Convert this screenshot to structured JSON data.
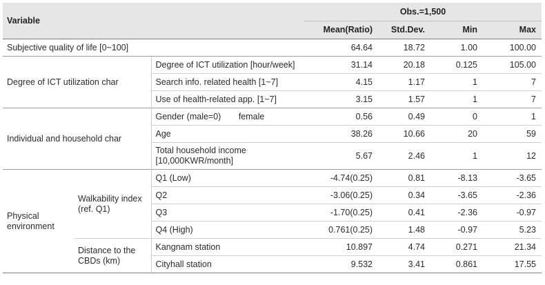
{
  "header": {
    "variable": "Variable",
    "obs": "Obs.=1,500",
    "mean": "Mean(Ratio)",
    "sd": "Std.Dev.",
    "min": "Min",
    "max": "Max"
  },
  "rows": {
    "sqol": {
      "label": "Subjective quality of life [0~100]",
      "mean": "64.64",
      "sd": "18.72",
      "min": "1.00",
      "max": "100.00"
    },
    "ict": {
      "group": "Degree of ICT utilization char",
      "r1": {
        "label": "Degree of ICT utilization [hour/week]",
        "mean": "31.14",
        "sd": "20.18",
        "min": "0.125",
        "max": "105.00"
      },
      "r2": {
        "label": "Search info. related health [1~7]",
        "mean": "4.15",
        "sd": "1.17",
        "min": "1",
        "max": "7"
      },
      "r3": {
        "label": "Use of health-related app. [1~7]",
        "mean": "3.15",
        "sd": "1.57",
        "min": "1",
        "max": "7"
      }
    },
    "ind": {
      "group": "Individual and household char",
      "r1": {
        "label": "Gender (male=0)",
        "label2": "female",
        "mean": "0.56",
        "sd": "0.49",
        "min": "0",
        "max": "1"
      },
      "r2": {
        "label": "Age",
        "mean": "38.26",
        "sd": "10.66",
        "min": "20",
        "max": "59"
      },
      "r3": {
        "label": "Total household income [10,000KWR/month]",
        "mean": "5.67",
        "sd": "2.46",
        "min": "1",
        "max": "12"
      }
    },
    "phys": {
      "group": "Physical environment",
      "walk": {
        "sub": "Walkability index (ref. Q1)",
        "q1": {
          "label": "Q1 (Low)",
          "mean": "-4.74(0.25)",
          "sd": "0.81",
          "min": "-8.13",
          "max": "-3.65"
        },
        "q2": {
          "label": "Q2",
          "mean": "-3.06(0.25)",
          "sd": "0.34",
          "min": "-3.65",
          "max": "-2.36"
        },
        "q3": {
          "label": "Q3",
          "mean": "-1.70(0.25)",
          "sd": "0.41",
          "min": "-2.36",
          "max": "-0.97"
        },
        "q4": {
          "label": "Q4 (High)",
          "mean": "0.761(0.25)",
          "sd": "1.48",
          "min": "-0.97",
          "max": "5.23"
        }
      },
      "dist": {
        "sub": "Distance to the CBDs (km)",
        "k": {
          "label": "Kangnam station",
          "mean": "10.897",
          "sd": "4.74",
          "min": "0.271",
          "max": "21.34"
        },
        "c": {
          "label": "Cityhall station",
          "mean": "9.532",
          "sd": "3.41",
          "min": "0.861",
          "max": "17.55"
        }
      }
    }
  }
}
